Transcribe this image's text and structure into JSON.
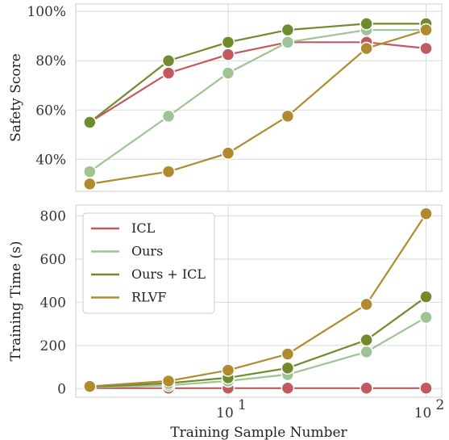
{
  "colors": {
    "ICL": "#c05a5f",
    "Ours": "#9ec394",
    "Ours + ICL": "#6f8b2e",
    "RLVF": "#b08a2e"
  },
  "chart_data": [
    {
      "type": "line",
      "title": "",
      "xlabel": "",
      "ylabel": "Safety Score",
      "xscale": "log",
      "xlim": [
        1.7,
        120
      ],
      "ylim": [
        27,
        103
      ],
      "grid": true,
      "yticks": [
        40,
        60,
        80,
        100
      ],
      "ytick_labels": [
        "40%",
        "60%",
        "80%",
        "100%"
      ],
      "x": [
        2,
        5,
        10,
        20,
        50,
        100
      ],
      "series": [
        {
          "name": "ICL",
          "values": [
            55,
            75,
            82.5,
            87.5,
            87.5,
            85
          ]
        },
        {
          "name": "Ours",
          "values": [
            35,
            57.5,
            75,
            87.5,
            92.5,
            92.5
          ]
        },
        {
          "name": "Ours + ICL",
          "values": [
            55,
            80,
            87.5,
            92.5,
            95,
            95
          ]
        },
        {
          "name": "RLVF",
          "values": [
            30,
            35,
            42.5,
            57.5,
            85,
            92.5
          ]
        }
      ]
    },
    {
      "type": "line",
      "title": "",
      "xlabel": "Training Sample Number",
      "ylabel": "Training Time (s)",
      "xscale": "log",
      "xlim": [
        1.7,
        120
      ],
      "ylim": [
        -40,
        850
      ],
      "grid": true,
      "yticks": [
        0,
        200,
        400,
        600,
        800
      ],
      "ytick_labels": [
        "0",
        "200",
        "400",
        "600",
        "800"
      ],
      "xticks": [
        10,
        100
      ],
      "xtick_labels": [
        {
          "base": "10",
          "exp": "1"
        },
        {
          "base": "10",
          "exp": "2"
        }
      ],
      "legend": "upper-left",
      "x": [
        2,
        5,
        10,
        20,
        50,
        100
      ],
      "series": [
        {
          "name": "ICL",
          "values": [
            2,
            2,
            2,
            2,
            2,
            2
          ]
        },
        {
          "name": "Ours",
          "values": [
            5,
            15,
            35,
            65,
            170,
            330
          ]
        },
        {
          "name": "Ours + ICL",
          "values": [
            8,
            25,
            50,
            95,
            225,
            425
          ]
        },
        {
          "name": "RLVF",
          "values": [
            10,
            35,
            85,
            160,
            390,
            810
          ]
        }
      ]
    }
  ]
}
